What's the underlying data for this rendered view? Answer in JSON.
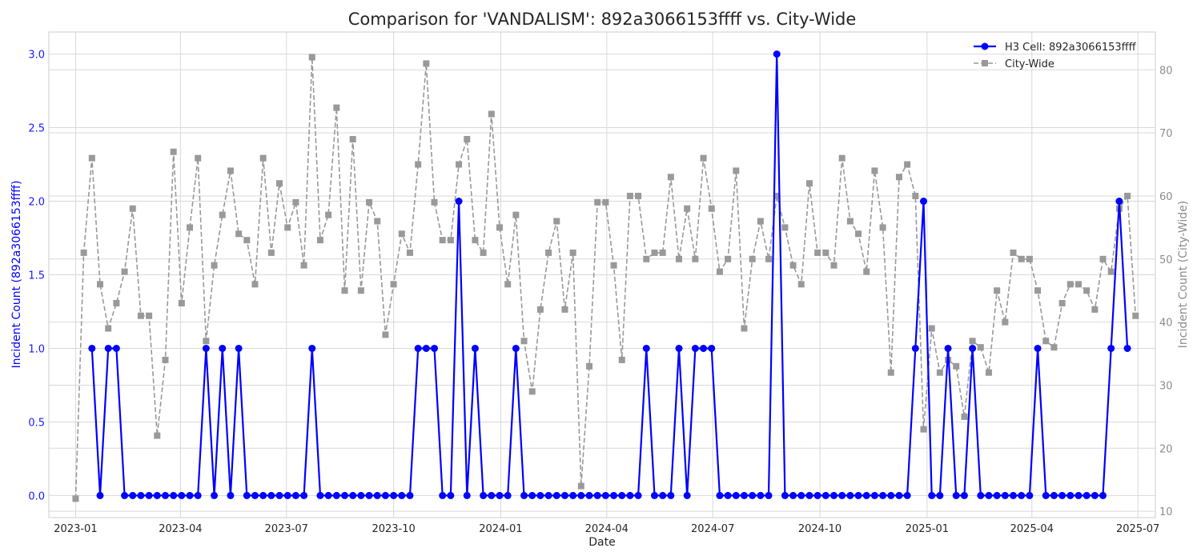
{
  "chart_data": {
    "type": "line",
    "title": "Comparison for 'VANDALISM': 892a3066153ffff vs. City-Wide",
    "xlabel": "Date",
    "ylabel_left": "Incident Count (892a3066153ffff)",
    "ylabel_right": "Incident Count (City-Wide)",
    "x_range": [
      "2022-12-09",
      "2025-07-16"
    ],
    "ylim_left": [
      -0.15,
      3.15
    ],
    "ylim_right": [
      9,
      86
    ],
    "left_ticks": [
      0,
      0.5,
      1,
      1.5,
      2,
      2.5,
      3
    ],
    "left_tick_labels": [
      "0.0",
      "0.5",
      "1.0",
      "1.5",
      "2.0",
      "2.5",
      "3.0"
    ],
    "right_ticks": [
      10,
      20,
      30,
      40,
      50,
      60,
      70,
      80
    ],
    "right_tick_labels": [
      "10",
      "20",
      "30",
      "40",
      "50",
      "60",
      "70",
      "80"
    ],
    "x_ticks": [
      "2023-01-01",
      "2023-04-01",
      "2023-07-01",
      "2023-10-01",
      "2024-01-01",
      "2024-04-01",
      "2024-07-01",
      "2024-10-01",
      "2025-01-01",
      "2025-04-01",
      "2025-07-01"
    ],
    "x_tick_labels": [
      "2023-01",
      "2023-04",
      "2023-07",
      "2023-10",
      "2024-01",
      "2024-04",
      "2024-07",
      "2024-10",
      "2025-01",
      "2025-04",
      "2025-07"
    ],
    "grid": true,
    "legend_position": "top-right",
    "series": [
      {
        "name": "H3 Cell: 892a3066153ffff",
        "axis": "left",
        "color": "#0000ff",
        "style": "solid",
        "marker": "circle",
        "start_date": "2023-01-15",
        "interval_days": 7,
        "values": [
          1,
          0,
          1,
          1,
          0,
          0,
          0,
          0,
          0,
          0,
          0,
          0,
          0,
          0,
          1,
          0,
          1,
          0,
          1,
          0,
          0,
          0,
          0,
          0,
          0,
          0,
          0,
          1,
          0,
          0,
          0,
          0,
          0,
          0,
          0,
          0,
          0,
          0,
          0,
          0,
          1,
          1,
          1,
          0,
          0,
          2,
          0,
          1,
          0,
          0,
          0,
          0,
          1,
          0,
          0,
          0,
          0,
          0,
          0,
          0,
          0,
          0,
          0,
          0,
          0,
          0,
          0,
          0,
          1,
          0,
          0,
          0,
          1,
          0,
          1,
          1,
          1,
          0,
          0,
          0,
          0,
          0,
          0,
          0,
          3,
          0,
          0,
          0,
          0,
          0,
          0,
          0,
          0,
          0,
          0,
          0,
          0,
          0,
          0,
          0,
          0,
          1,
          2,
          0,
          0,
          1,
          0,
          0,
          1,
          0,
          0,
          0,
          0,
          0,
          0,
          0,
          1,
          0,
          0,
          0,
          0,
          0,
          0,
          0,
          0,
          1,
          2,
          1
        ]
      },
      {
        "name": "City-Wide",
        "axis": "right",
        "color": "#999999",
        "style": "dashed",
        "marker": "square",
        "start_date": "2023-01-01",
        "interval_days": 7,
        "values": [
          12,
          51,
          66,
          46,
          39,
          43,
          48,
          58,
          41,
          41,
          22,
          34,
          67,
          43,
          55,
          66,
          37,
          49,
          57,
          64,
          54,
          53,
          46,
          66,
          51,
          62,
          55,
          59,
          49,
          82,
          53,
          57,
          74,
          45,
          69,
          45,
          59,
          56,
          38,
          46,
          54,
          51,
          65,
          81,
          59,
          53,
          53,
          65,
          69,
          53,
          51,
          73,
          55,
          46,
          57,
          37,
          29,
          42,
          51,
          56,
          42,
          51,
          14,
          33,
          59,
          59,
          49,
          34,
          60,
          60,
          50,
          51,
          51,
          63,
          50,
          58,
          50,
          66,
          58,
          48,
          50,
          64,
          39,
          50,
          56,
          50,
          60,
          55,
          49,
          46,
          62,
          51,
          51,
          49,
          66,
          56,
          54,
          48,
          64,
          55,
          32,
          63,
          65,
          60,
          23,
          39,
          32,
          34,
          33,
          25,
          37,
          36,
          32,
          45,
          40,
          51,
          50,
          50,
          45,
          37,
          36,
          43,
          46,
          46,
          45,
          42,
          50,
          48,
          58,
          60,
          41
        ]
      }
    ]
  }
}
